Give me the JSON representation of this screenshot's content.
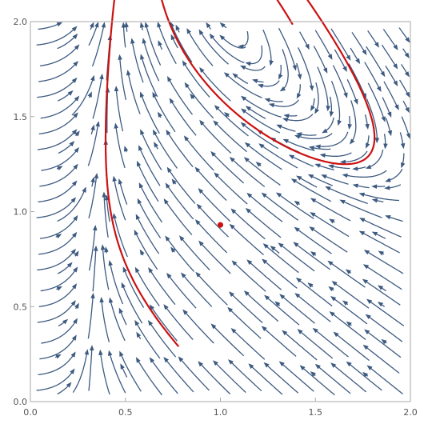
{
  "chart_data": {
    "type": "stream",
    "xlim": [
      0,
      2
    ],
    "ylim": [
      0,
      2
    ],
    "x_ticks": [
      {
        "value": 0.0,
        "label": "0.0"
      },
      {
        "value": 0.5,
        "label": "0.5"
      },
      {
        "value": 1.0,
        "label": "1.0"
      },
      {
        "value": 1.5,
        "label": "1.5"
      },
      {
        "value": 2.0,
        "label": "2.0"
      }
    ],
    "y_ticks": [
      {
        "value": 0.0,
        "label": "0.0"
      },
      {
        "value": 0.5,
        "label": "0.5"
      },
      {
        "value": 1.0,
        "label": "1.0"
      },
      {
        "value": 1.5,
        "label": "1.5"
      },
      {
        "value": 2.0,
        "label": "2.0"
      }
    ],
    "grid": false,
    "colors": {
      "stream": "#3d5a80",
      "trajectory": "#cc1111",
      "equilibrium": "#cc1111"
    },
    "equilibrium": {
      "x": 1.0,
      "y": 0.93
    },
    "trajectory_start": {
      "x": 0.78,
      "y": 0.29
    }
  }
}
